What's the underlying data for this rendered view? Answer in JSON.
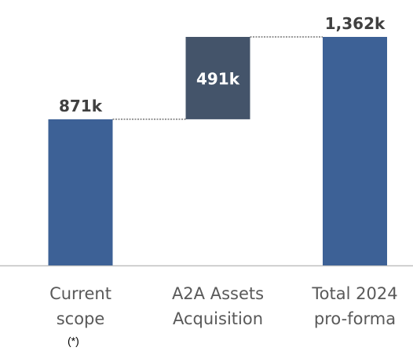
{
  "chart_data": {
    "type": "waterfall",
    "categories": [
      "Current\nscope",
      "A2A Assets\nAcquisition",
      "Total 2024\npro-forma"
    ],
    "values": [
      871,
      491,
      1362
    ],
    "value_labels": [
      "871k",
      "491k",
      "1,362k"
    ],
    "totals": [
      false,
      false,
      true
    ],
    "colors": [
      "#3d6196",
      "#44546a",
      "#3d6196"
    ],
    "footnote": "(*)"
  }
}
